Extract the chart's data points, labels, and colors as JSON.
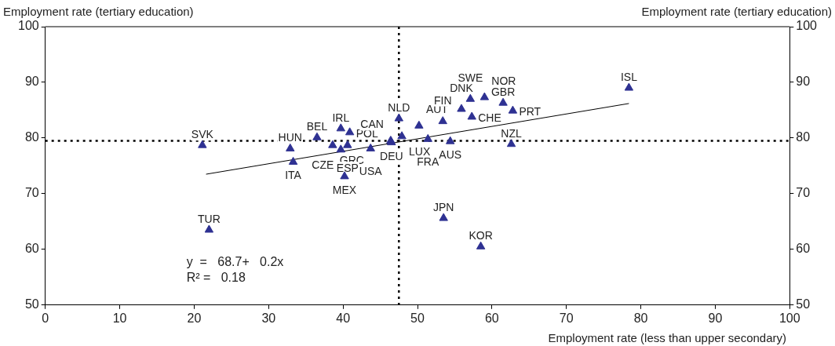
{
  "chart_data": {
    "type": "scatter",
    "xlabel": "Employment rate (less than upper secondary)",
    "ylabel": "Employment rate (tertiary education)",
    "y2label": "Employment rate (tertiary education)",
    "xlim": [
      0,
      100
    ],
    "xticks": [
      0,
      10,
      20,
      30,
      40,
      50,
      60,
      70,
      80,
      90,
      100
    ],
    "ylim": [
      50,
      100
    ],
    "yticks": [
      50,
      60,
      70,
      80,
      90,
      100
    ],
    "y2lim": [
      50,
      100
    ],
    "y2ticks": [
      50,
      60,
      70,
      80,
      90,
      100
    ],
    "grid": false,
    "legend": false,
    "marker": "triangle",
    "series": [
      {
        "color": "#2e3192",
        "x": [
          21.1,
          32.9,
          33.3,
          36.5,
          38.6,
          39.7,
          39.7,
          40.9,
          40.6,
          40.2,
          43.7,
          46.5,
          46.4,
          47.9,
          47.5,
          50.2,
          51.4,
          53.4,
          54.4,
          57.3,
          55.9,
          57.1,
          59.0,
          61.5,
          62.8,
          62.6,
          78.4,
          22.0,
          53.5,
          58.5
        ],
        "values": [
          78.7,
          78.1,
          75.7,
          80.1,
          78.7,
          77.9,
          81.7,
          81.0,
          78.7,
          73.1,
          78.1,
          79.2,
          79.5,
          80.3,
          83.5,
          82.2,
          79.8,
          83.0,
          79.4,
          83.8,
          85.2,
          87.0,
          87.3,
          86.3,
          84.9,
          78.9,
          89.0,
          63.5,
          65.6,
          60.5
        ],
        "value_labels": [
          "SVK",
          "HUN",
          "ITA",
          "BEL",
          "GRC",
          "CZE",
          "IRL",
          "POL",
          "ESP",
          "MEX",
          "USA",
          "DEU",
          "CAN",
          "LUX",
          "NLD",
          "AUT",
          "FRA",
          "FIN",
          "AUS",
          "CHE",
          "DNK",
          "SWE",
          "NOR",
          "GBR",
          "PRT",
          "NZL",
          "ISL",
          "TUR",
          "JPN",
          "KOR"
        ]
      },
      {
        "type": "line",
        "color": "#000000",
        "x": [
          21.6,
          78.4
        ],
        "values": [
          73.5,
          86.2
        ],
        "marker": "none"
      }
    ],
    "ref_lines": [
      {
        "axis": "x",
        "value": 47.5,
        "line_style": "dotted",
        "color": "#000000"
      },
      {
        "axis": "y",
        "value": 79.5,
        "line_style": "dotted",
        "color": "#000000"
      }
    ],
    "annotations": [
      "y  =   68.7+   0.2x",
      "R² =   0.18"
    ]
  }
}
